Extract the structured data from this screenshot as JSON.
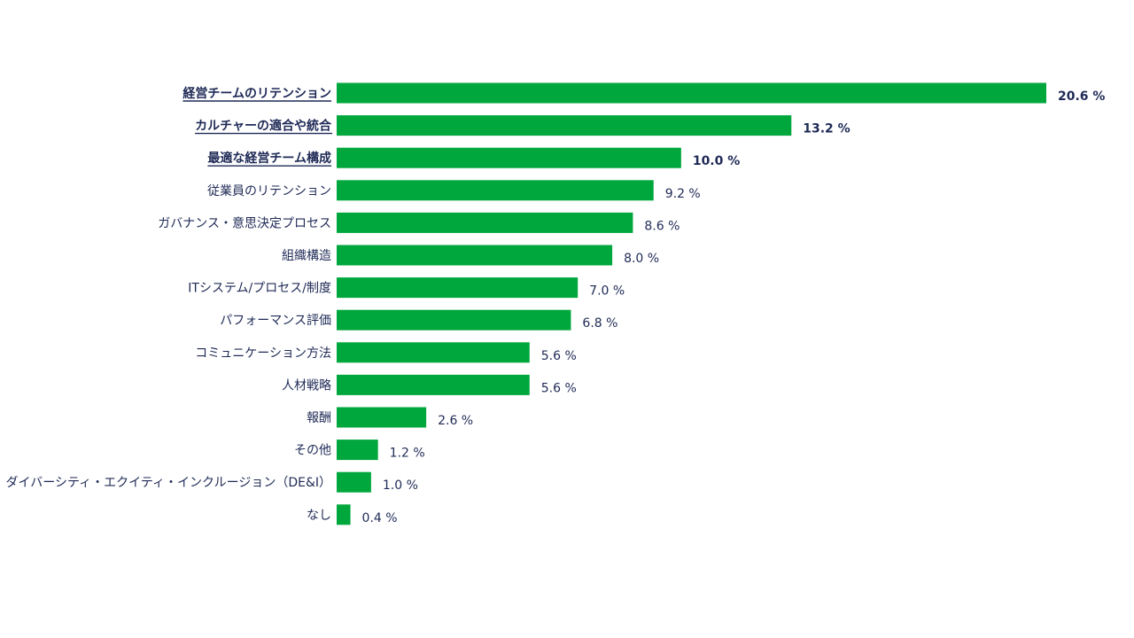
{
  "chart_data": {
    "type": "bar",
    "orientation": "horizontal",
    "title": "",
    "xlabel": "",
    "ylabel": "",
    "xlim": [
      0,
      20.6
    ],
    "grid": false,
    "unit_suffix": " %",
    "bar_color": "#00a73c",
    "text_color": "#1f2a56",
    "categories": [
      "経営チームのリテンション",
      "カルチャーの適合や統合",
      "最適な経営チーム構成",
      "従業員のリテンション",
      "ガバナンス・意思決定プロセス",
      "組織構造",
      "ITシステム/プロセス/制度",
      "パフォーマンス評価",
      "コミュニケーション方法",
      "人材戦略",
      "報酬",
      "その他",
      "ダイバーシティ・エクイティ・インクルージョン（DE&I）",
      "なし"
    ],
    "values": [
      20.6,
      13.2,
      10.0,
      9.2,
      8.6,
      8.0,
      7.0,
      6.8,
      5.6,
      5.6,
      2.6,
      1.2,
      1.0,
      0.4
    ],
    "value_labels": [
      "20.6 %",
      "13.2 %",
      "10.0 %",
      "9.2 %",
      "8.6 %",
      "8.0 %",
      "7.0 %",
      "6.8 %",
      "5.6 %",
      "5.6 %",
      "2.6 %",
      "1.2 %",
      "1.0 %",
      "0.4 %"
    ],
    "highlighted": [
      true,
      true,
      true,
      false,
      false,
      false,
      false,
      false,
      false,
      false,
      false,
      false,
      false,
      false
    ]
  }
}
